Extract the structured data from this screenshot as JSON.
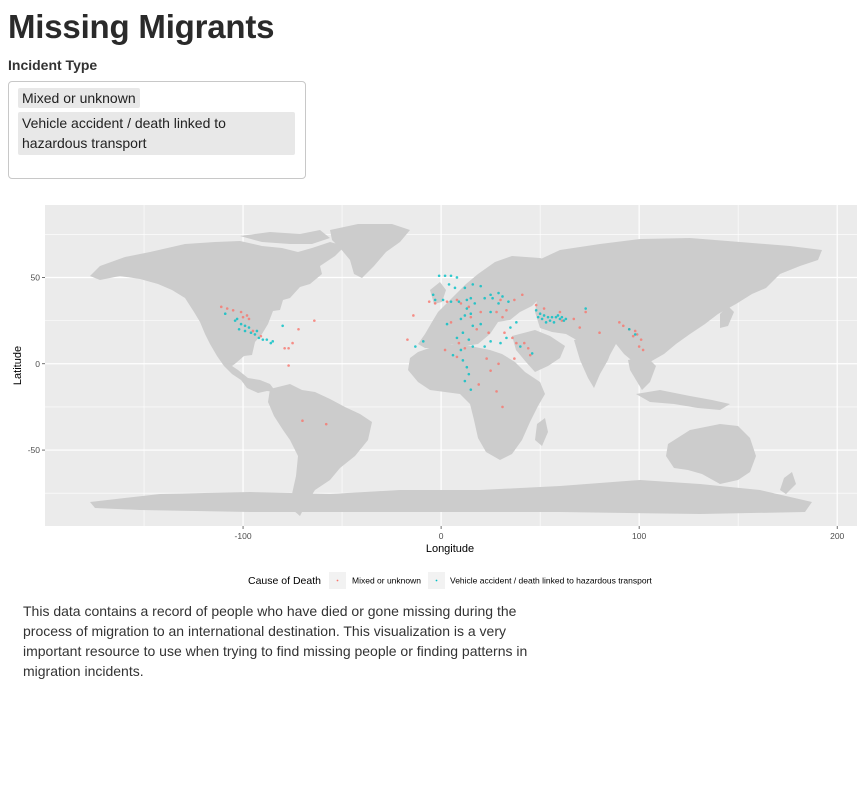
{
  "app": {
    "title": "Missing Migrants"
  },
  "filter": {
    "label": "Incident Type",
    "selected": [
      "Mixed or unknown",
      "Vehicle accident / death linked to hazardous transport"
    ]
  },
  "chart_data": {
    "type": "scatter",
    "title": "",
    "xlabel": "Longitude",
    "ylabel": "Latitude",
    "xlim": [
      -200,
      210
    ],
    "ylim": [
      -94,
      92
    ],
    "x_ticks": [
      -100,
      0,
      100,
      200
    ],
    "y_ticks": [
      -50,
      0,
      50
    ],
    "grid": true,
    "legend": {
      "title": "Cause of Death",
      "placement": "bottom",
      "entries": [
        "Mixed or unknown",
        "Vehicle accident / death linked to hazardous transport"
      ]
    },
    "colors": {
      "panel": "#ebebeb",
      "land": "#cccccc",
      "grid": "#ffffff",
      "series": [
        "#f8766d",
        "#00bfc4"
      ]
    },
    "series": [
      {
        "name": "Mixed or unknown",
        "color": "#f8766d",
        "points": [
          [
            -111,
            33
          ],
          [
            -108,
            32
          ],
          [
            -105,
            31
          ],
          [
            -101,
            30
          ],
          [
            -98,
            28
          ],
          [
            -97,
            26
          ],
          [
            -100,
            27
          ],
          [
            -95,
            19
          ],
          [
            -91,
            16
          ],
          [
            -79,
            9
          ],
          [
            -77,
            9
          ],
          [
            -72,
            20
          ],
          [
            -75,
            12
          ],
          [
            -64,
            25
          ],
          [
            -77,
            -1
          ],
          [
            -70,
            -33
          ],
          [
            -58,
            -35
          ],
          [
            -17,
            14
          ],
          [
            -14,
            28
          ],
          [
            -6,
            36
          ],
          [
            -3,
            35
          ],
          [
            3,
            36
          ],
          [
            8,
            37
          ],
          [
            10,
            35
          ],
          [
            14,
            33
          ],
          [
            15,
            27
          ],
          [
            20,
            30
          ],
          [
            28,
            30
          ],
          [
            31,
            27
          ],
          [
            33,
            31
          ],
          [
            18,
            20
          ],
          [
            24,
            18
          ],
          [
            32,
            18
          ],
          [
            36,
            15
          ],
          [
            38,
            12
          ],
          [
            42,
            12
          ],
          [
            44,
            9
          ],
          [
            45,
            5
          ],
          [
            37,
            3
          ],
          [
            29,
            0
          ],
          [
            25,
            -4
          ],
          [
            19,
            -12
          ],
          [
            28,
            -16
          ],
          [
            31,
            -25
          ],
          [
            23,
            3
          ],
          [
            12,
            9
          ],
          [
            9,
            12
          ],
          [
            2,
            8
          ],
          [
            8,
            4
          ],
          [
            5,
            24
          ],
          [
            30,
            37
          ],
          [
            37,
            37
          ],
          [
            41,
            40
          ],
          [
            48,
            34
          ],
          [
            52,
            32
          ],
          [
            60,
            30
          ],
          [
            61,
            25
          ],
          [
            67,
            26
          ],
          [
            73,
            30
          ],
          [
            70,
            21
          ],
          [
            80,
            18
          ],
          [
            90,
            24
          ],
          [
            92,
            22
          ],
          [
            95,
            20
          ],
          [
            97,
            16
          ],
          [
            99,
            17
          ],
          [
            100,
            10
          ],
          [
            102,
            8
          ],
          [
            101,
            14
          ],
          [
            98,
            19
          ]
        ]
      },
      {
        "name": "Vehicle accident / death linked to hazardous transport",
        "color": "#00bfc4",
        "points": [
          [
            -109,
            29
          ],
          [
            -104,
            25
          ],
          [
            -101,
            23
          ],
          [
            -99,
            22
          ],
          [
            -99,
            19
          ],
          [
            -96,
            18
          ],
          [
            -94,
            17
          ],
          [
            -92,
            15
          ],
          [
            -90,
            14
          ],
          [
            -88,
            14
          ],
          [
            -86,
            12
          ],
          [
            -102,
            20
          ],
          [
            -97,
            21
          ],
          [
            -93,
            19
          ],
          [
            -103,
            26
          ],
          [
            -85,
            13
          ],
          [
            -80,
            22
          ],
          [
            -1,
            51
          ],
          [
            2,
            51
          ],
          [
            5,
            51
          ],
          [
            8,
            50
          ],
          [
            4,
            46
          ],
          [
            7,
            44
          ],
          [
            12,
            44
          ],
          [
            16,
            46
          ],
          [
            20,
            45
          ],
          [
            -4,
            40
          ],
          [
            -3,
            37
          ],
          [
            1,
            37
          ],
          [
            5,
            36
          ],
          [
            9,
            36
          ],
          [
            13,
            37
          ],
          [
            15,
            38
          ],
          [
            17,
            35
          ],
          [
            13,
            32
          ],
          [
            22,
            38
          ],
          [
            25,
            40
          ],
          [
            26,
            38
          ],
          [
            29,
            41
          ],
          [
            31,
            39
          ],
          [
            34,
            36
          ],
          [
            12,
            28
          ],
          [
            15,
            29
          ],
          [
            10,
            26
          ],
          [
            16,
            22
          ],
          [
            20,
            23
          ],
          [
            11,
            18
          ],
          [
            14,
            14
          ],
          [
            8,
            15
          ],
          [
            16,
            10
          ],
          [
            10,
            8
          ],
          [
            6,
            5
          ],
          [
            11,
            2
          ],
          [
            13,
            -2
          ],
          [
            14,
            -6
          ],
          [
            12,
            -10
          ],
          [
            15,
            -15
          ],
          [
            22,
            10
          ],
          [
            25,
            13
          ],
          [
            30,
            12
          ],
          [
            33,
            15
          ],
          [
            40,
            10
          ],
          [
            46,
            6
          ],
          [
            35,
            21
          ],
          [
            38,
            24
          ],
          [
            -13,
            10
          ],
          [
            -9,
            13
          ],
          [
            3,
            23
          ],
          [
            25,
            30
          ],
          [
            29,
            35
          ],
          [
            48,
            31
          ],
          [
            50,
            29
          ],
          [
            52,
            28
          ],
          [
            54,
            27
          ],
          [
            56,
            27
          ],
          [
            58,
            27
          ],
          [
            60,
            26
          ],
          [
            62,
            25
          ],
          [
            55,
            25
          ],
          [
            53,
            24
          ],
          [
            57,
            24
          ],
          [
            59,
            28
          ],
          [
            61,
            27
          ],
          [
            63,
            26
          ],
          [
            51,
            26
          ],
          [
            49,
            27
          ],
          [
            95,
            20
          ],
          [
            98,
            17
          ],
          [
            73,
            32
          ]
        ]
      }
    ]
  }
}
